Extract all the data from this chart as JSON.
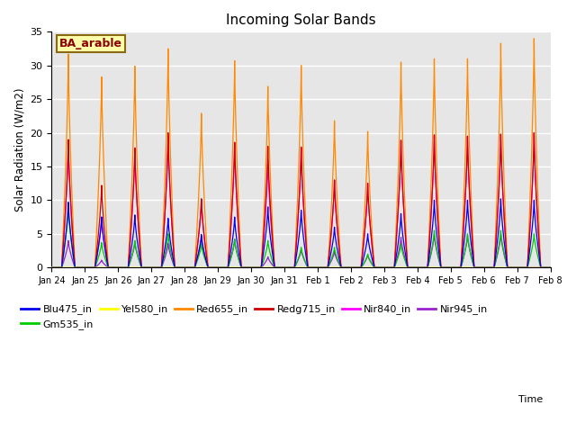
{
  "title": "Incoming Solar Bands",
  "xlabel": "Time",
  "ylabel": "Solar Radiation (W/m2)",
  "ylim": [
    0,
    35
  ],
  "annotation_label": "BA_arable",
  "annotation_color": "#8B0000",
  "annotation_bg": "#FFFFAA",
  "annotation_edge": "#8B6914",
  "legend_entries": [
    {
      "label": "Blu475_in",
      "color": "#0000EE"
    },
    {
      "label": "Gm535_in",
      "color": "#00CC00"
    },
    {
      "label": "Yel580_in",
      "color": "#FFFF00"
    },
    {
      "label": "Red655_in",
      "color": "#FF8800"
    },
    {
      "label": "Redg715_in",
      "color": "#CC0000"
    },
    {
      "label": "Nir840_in",
      "color": "#FF00FF"
    },
    {
      "label": "Nir945_in",
      "color": "#9922CC"
    }
  ],
  "tick_labels": [
    "Jan 24",
    "Jan 25",
    "Jan 26",
    "Jan 27",
    "Jan 28",
    "Jan 29",
    "Jan 30",
    "Jan 31",
    "Feb 1",
    "Feb 2",
    "Feb 3",
    "Feb 4",
    "Feb 5",
    "Feb 6",
    "Feb 7",
    "Feb 8"
  ],
  "n_days": 15,
  "peak_data": {
    "Red655_in": [
      31.7,
      28.3,
      29.9,
      32.5,
      22.9,
      30.7,
      26.9,
      30.0,
      21.8,
      20.2,
      30.5,
      31.0,
      31.0,
      33.3,
      34.0
    ],
    "Redg715_in": [
      19.0,
      12.2,
      17.7,
      20.0,
      10.2,
      18.6,
      18.0,
      17.9,
      13.0,
      12.5,
      18.9,
      19.7,
      19.5,
      19.8,
      20.0
    ],
    "Nir840_in": [
      18.5,
      7.5,
      17.8,
      19.5,
      10.2,
      18.5,
      16.0,
      17.8,
      13.0,
      12.5,
      18.8,
      19.6,
      19.5,
      19.8,
      20.0
    ],
    "Blu475_in": [
      9.7,
      7.5,
      7.8,
      7.3,
      4.9,
      7.5,
      9.0,
      8.5,
      6.0,
      5.0,
      8.0,
      10.0,
      10.0,
      10.2,
      10.0
    ],
    "Gm535_in": [
      9.0,
      3.7,
      4.0,
      5.0,
      3.5,
      4.2,
      4.0,
      3.0,
      3.0,
      2.0,
      3.5,
      5.5,
      5.0,
      5.5,
      5.0
    ],
    "Nir945_in": [
      4.0,
      1.1,
      3.8,
      3.6,
      4.6,
      4.2,
      1.6,
      2.7,
      2.4,
      1.9,
      4.5,
      5.0,
      4.8,
      5.0,
      0.0
    ],
    "Yel580_in": [
      0.0,
      0.0,
      0.0,
      0.0,
      0.0,
      0.0,
      0.0,
      0.0,
      0.0,
      0.0,
      0.0,
      0.0,
      0.0,
      0.0,
      0.0
    ]
  },
  "colors": {
    "Red655_in": "#FF8800",
    "Redg715_in": "#CC0000",
    "Nir840_in": "#FF00FF",
    "Blu475_in": "#0000EE",
    "Gm535_in": "#00CC00",
    "Nir945_in": "#9922CC",
    "Yel580_in": "#FFFF00"
  },
  "plot_order": [
    "Red655_in",
    "Nir840_in",
    "Redg715_in",
    "Nir945_in",
    "Gm535_in",
    "Blu475_in",
    "Yel580_in"
  ]
}
